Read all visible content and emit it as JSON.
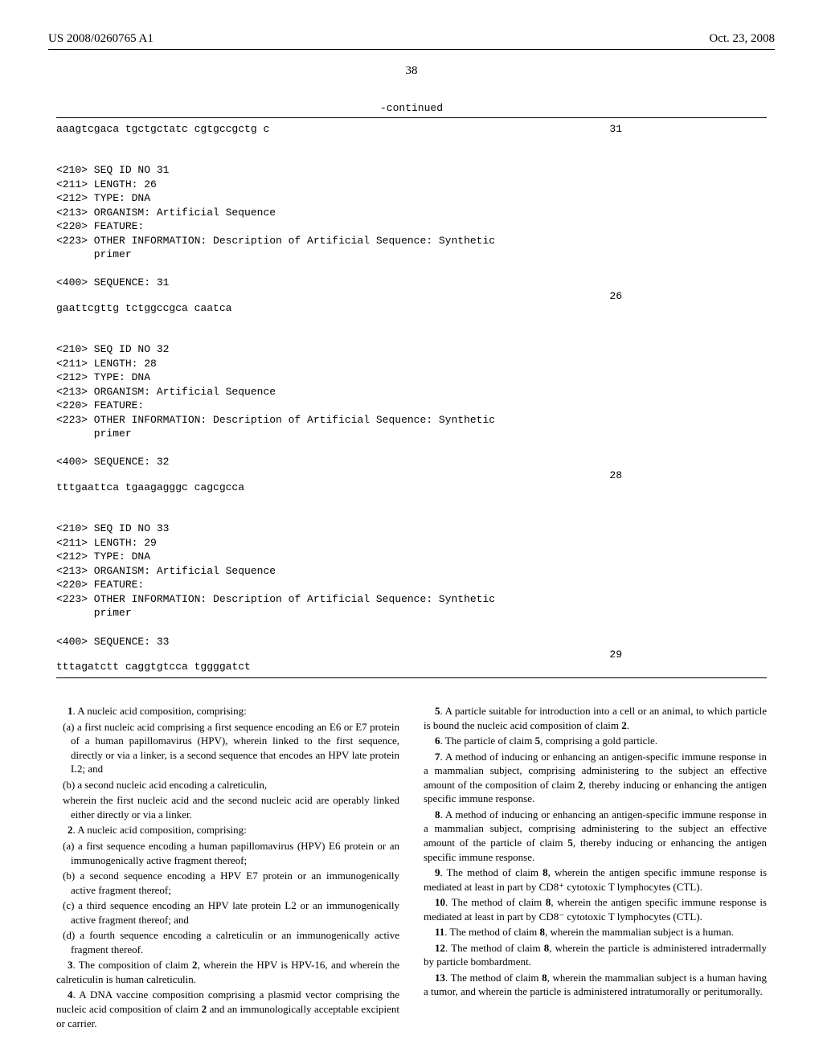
{
  "header": {
    "left": "US 2008/0260765 A1",
    "right": "Oct. 23, 2008"
  },
  "pageNumber": "38",
  "continuedLabel": "-continued",
  "seqTopRow": {
    "seq": "aaagtcgaca tgctgctatc cgtgccgctg c",
    "num": "31"
  },
  "entries": [
    {
      "lines": "<210> SEQ ID NO 31\n<211> LENGTH: 26\n<212> TYPE: DNA\n<213> ORGANISM: Artificial Sequence\n<220> FEATURE:\n<223> OTHER INFORMATION: Description of Artificial Sequence: Synthetic\n      primer\n\n<400> SEQUENCE: 31",
      "seqRow": {
        "seq": "gaattcgttg tctggccgca caatca",
        "num": "26"
      }
    },
    {
      "lines": "<210> SEQ ID NO 32\n<211> LENGTH: 28\n<212> TYPE: DNA\n<213> ORGANISM: Artificial Sequence\n<220> FEATURE:\n<223> OTHER INFORMATION: Description of Artificial Sequence: Synthetic\n      primer\n\n<400> SEQUENCE: 32",
      "seqRow": {
        "seq": "tttgaattca tgaagagggc cagcgcca",
        "num": "28"
      }
    },
    {
      "lines": "<210> SEQ ID NO 33\n<211> LENGTH: 29\n<212> TYPE: DNA\n<213> ORGANISM: Artificial Sequence\n<220> FEATURE:\n<223> OTHER INFORMATION: Description of Artificial Sequence: Synthetic\n      primer\n\n<400> SEQUENCE: 33",
      "seqRow": {
        "seq": "tttagatctt caggtgtcca tggggatct",
        "num": "29"
      }
    }
  ],
  "claims": {
    "left": {
      "c1_intro": "1",
      "c1_text": ". A nucleic acid composition, comprising:",
      "c1a": "(a) a first nucleic acid comprising a first sequence encoding an E6 or E7 protein of a human papillomavirus (HPV), wherein linked to the first sequence, directly or via a linker, is a second sequence that encodes an HPV late protein L2; and",
      "c1b": "(b) a second nucleic acid encoding a calreticulin,",
      "c1w": "wherein the first nucleic acid and the second nucleic acid are operably linked either directly or via a linker.",
      "c2_intro": "2",
      "c2_text": ". A nucleic acid composition, comprising:",
      "c2a": "(a) a first sequence encoding a human papillomavirus (HPV) E6 protein or an immunogenically active fragment thereof;",
      "c2b": "(b) a second sequence encoding a HPV E7 protein or an immunogenically active fragment thereof;",
      "c2c": "(c) a third sequence encoding an HPV late protein L2 or an immunogenically active fragment thereof; and",
      "c2d": "(d) a fourth sequence encoding a calreticulin or an immunogenically active fragment thereof.",
      "c3_n": "3",
      "c3_r": "2",
      "c3_pre": ". The composition of claim ",
      "c3_post": ", wherein the HPV is HPV-16, and wherein the calreticulin is human calreticulin.",
      "c4_n": "4",
      "c4_r": "2",
      "c4_pre": ". A DNA vaccine composition comprising a plasmid vector comprising the nucleic acid composition of claim ",
      "c4_post": " and an immunologically acceptable excipient or carrier."
    },
    "right": {
      "c5_n": "5",
      "c5_r": "2",
      "c5_pre": ". A particle suitable for introduction into a cell or an animal, to which particle is bound the nucleic acid composition of claim ",
      "c5_post": ".",
      "c6_n": "6",
      "c6_r": "5",
      "c6_pre": ". The particle of claim ",
      "c6_post": ", comprising a gold particle.",
      "c7_n": "7",
      "c7_r": "2",
      "c7_pre": ". A method of inducing or enhancing an antigen-specific immune response in a mammalian subject, comprising administering to the subject an effective amount of the composition of claim ",
      "c7_post": ", thereby inducing or enhancing the antigen specific immune response.",
      "c8_n": "8",
      "c8_r": "5",
      "c8_pre": ". A method of inducing or enhancing an antigen-specific immune response in a mammalian subject, comprising administering to the subject an effective amount of the particle of claim ",
      "c8_post": ", thereby inducing or enhancing the antigen specific immune response.",
      "c9_n": "9",
      "c9_r": "8",
      "c9_pre": ". The method of claim ",
      "c9_post": ", wherein the antigen specific immune response is mediated at least in part by CD8⁺ cytotoxic T lymphocytes (CTL).",
      "c10_n": "10",
      "c10_r": "8",
      "c10_pre": ". The method of claim ",
      "c10_post": ", wherein the antigen specific immune response is mediated at least in part by CD8⁻ cytotoxic T lymphocytes (CTL).",
      "c11_n": "11",
      "c11_r": "8",
      "c11_pre": ". The method of claim ",
      "c11_post": ", wherein the mammalian subject is a human.",
      "c12_n": "12",
      "c12_r": "8",
      "c12_pre": ". The method of claim ",
      "c12_post": ", wherein the particle is administered intradermally by particle bombardment.",
      "c13_n": "13",
      "c13_r": "8",
      "c13_pre": ". The method of claim ",
      "c13_post": ", wherein the mammalian subject is a human having a tumor, and wherein the particle is administered intratumorally or peritumorally."
    }
  }
}
